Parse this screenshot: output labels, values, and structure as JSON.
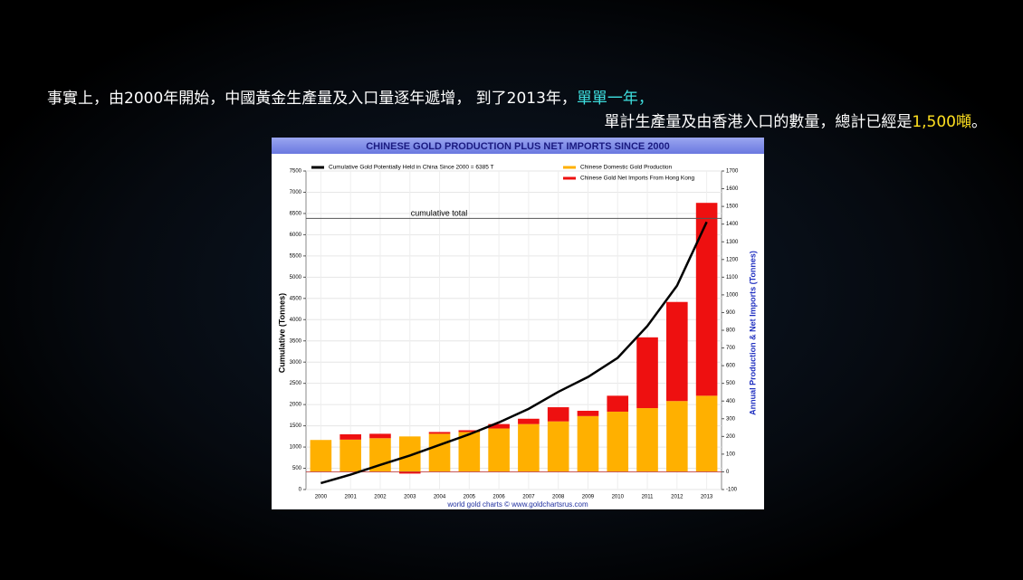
{
  "caption": {
    "line1": [
      "事實上，由2000年開始，中國黃金生產量及入口量逐年遞增， 到了2013年，",
      "單單一年，"
    ],
    "line2": [
      "單計生產量及由香港入口的數量，總計已經是",
      "1,500噸",
      "。"
    ]
  },
  "chart_data": {
    "type": "bar_line",
    "title": "CHINESE GOLD PRODUCTION PLUS NET IMPORTS SINCE 2000",
    "ylabel": "Cumulative (Tonnes)",
    "y2label": "Annual Production & Net Imports (Tonnes)",
    "source": "world gold charts © www.goldchartsrus.com",
    "categories": [
      "2000",
      "2001",
      "2002",
      "2003",
      "2004",
      "2005",
      "2006",
      "2007",
      "2008",
      "2009",
      "2010",
      "2011",
      "2012",
      "2013"
    ],
    "series": [
      {
        "name": "Chinese Domestic Gold Production",
        "color": "#ffb000",
        "axis": "y2",
        "values": [
          180,
          182,
          190,
          200,
          215,
          225,
          245,
          270,
          285,
          315,
          340,
          360,
          400,
          430
        ]
      },
      {
        "name": "Chinese Gold Net Imports From Hong Kong",
        "color": "#ee1010",
        "axis": "y2",
        "values": [
          0,
          30,
          25,
          -10,
          10,
          10,
          25,
          30,
          80,
          30,
          90,
          400,
          560,
          1090
        ]
      },
      {
        "name": "Cumulative Gold Potentially Held in China Since 2000 = 6385 T",
        "color": "#000000",
        "type": "line",
        "values": [
          150,
          350,
          580,
          800,
          1050,
          1300,
          1580,
          1900,
          2300,
          2650,
          3100,
          3850,
          4800,
          6300
        ]
      }
    ],
    "reference_line": {
      "value": 6385,
      "label": "cumulative total"
    },
    "ylim": [
      0,
      7500
    ],
    "yticks": [
      0,
      500,
      1000,
      1500,
      2000,
      2500,
      3000,
      3500,
      4000,
      4500,
      5000,
      5500,
      6000,
      6500,
      7000,
      7500
    ],
    "y2lim": [
      -100,
      1700
    ],
    "y2ticks": [
      -100,
      0,
      100,
      200,
      300,
      400,
      500,
      600,
      700,
      800,
      900,
      1000,
      1100,
      1200,
      1300,
      1400,
      1500,
      1600,
      1700
    ],
    "grid": true
  }
}
